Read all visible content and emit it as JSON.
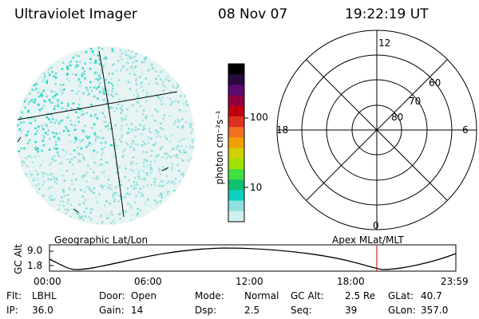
{
  "header": {
    "instrument": "Ultraviolet Imager",
    "date": "08 Nov 07",
    "time": "19:22:19 UT"
  },
  "colorbar": {
    "unit_label": "photon cm⁻²s⁻¹",
    "ticks": [
      "100",
      "10"
    ],
    "colors": [
      "#000000",
      "#2a0a40",
      "#5a0a70",
      "#900040",
      "#c00010",
      "#e03020",
      "#f07020",
      "#f0a000",
      "#d0d000",
      "#a0e000",
      "#40e040",
      "#10c070",
      "#10d0c0",
      "#90e0e0",
      "#d0f0f0"
    ]
  },
  "polar_plot": {
    "mlt_labels": {
      "top": "12",
      "left": "18",
      "right": "6",
      "bottom": "0"
    },
    "lat_labels": [
      "60",
      "70",
      "80"
    ]
  },
  "panel_labels": {
    "left": "Geographic Lat/Lon",
    "right": "Apex MLat/MLT"
  },
  "timeline": {
    "ylabel": "GC Alt",
    "y_ticks": [
      "9.0",
      "1.8"
    ],
    "x_ticks": [
      "00:00",
      "06:00",
      "12:00",
      "18:00",
      "23:59"
    ]
  },
  "info": {
    "row1": [
      {
        "label": "Flt:",
        "value": "LBHL"
      },
      {
        "label": "Door:",
        "value": "Open"
      },
      {
        "label": "Mode:",
        "value": "Normal"
      },
      {
        "label": "GC Alt:",
        "value": "2.5 Re"
      },
      {
        "label": "GLat:",
        "value": "40.7"
      }
    ],
    "row2": [
      {
        "label": "IP:",
        "value": "36.0"
      },
      {
        "label": "Gain:",
        "value": "14"
      },
      {
        "label": "Dsp:",
        "value": "2.5"
      },
      {
        "label": "Seq:",
        "value": "39"
      },
      {
        "label": "GLon:",
        "value": "357.0"
      }
    ]
  }
}
